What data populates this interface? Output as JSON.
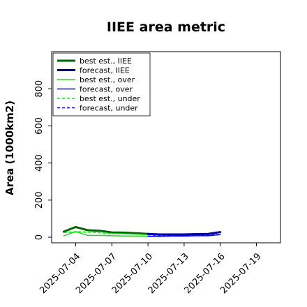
{
  "chart_data": {
    "type": "line",
    "title": "IIEE area metric",
    "xlabel": "",
    "ylabel": "Area (1000km2)",
    "ylim": [
      -30,
      1000
    ],
    "xlim": [
      "2025-07-02",
      "2025-07-21"
    ],
    "grid": false,
    "legend_position": "top-left",
    "x_ticks": [
      {
        "date": "2025-07-04",
        "label": "2025-07-04",
        "color": "#000000"
      },
      {
        "date": "2025-07-07",
        "label": "2025-07-07",
        "color": "#000000"
      },
      {
        "date": "2025-07-10",
        "label": "2025-07-10",
        "color": "#228b22"
      },
      {
        "date": "2025-07-13",
        "label": "2025-07-13",
        "color": "#000000"
      },
      {
        "date": "2025-07-16",
        "label": "2025-07-16",
        "color": "#000000"
      },
      {
        "date": "2025-07-19",
        "label": "2025-07-19",
        "color": "#000000"
      }
    ],
    "y_ticks": [
      0,
      200,
      400,
      600,
      800
    ],
    "series": [
      {
        "name": "best est., IIEE",
        "color": "#006400",
        "style": "solid",
        "width": 3,
        "points": [
          [
            "2025-07-03",
            30
          ],
          [
            "2025-07-04",
            55
          ],
          [
            "2025-07-05",
            38
          ],
          [
            "2025-07-06",
            35
          ],
          [
            "2025-07-07",
            26
          ],
          [
            "2025-07-08",
            25
          ],
          [
            "2025-07-09",
            22
          ],
          [
            "2025-07-10",
            18
          ]
        ]
      },
      {
        "name": "forecast, IIEE",
        "color": "#00008b",
        "style": "solid",
        "width": 3,
        "points": [
          [
            "2025-07-10",
            18
          ],
          [
            "2025-07-11",
            15
          ],
          [
            "2025-07-12",
            15
          ],
          [
            "2025-07-13",
            15
          ],
          [
            "2025-07-14",
            17
          ],
          [
            "2025-07-15",
            18
          ],
          [
            "2025-07-16",
            28
          ]
        ]
      },
      {
        "name": "best est., over",
        "color": "#32cd32",
        "style": "solid",
        "width": 1.5,
        "points": [
          [
            "2025-07-03",
            8
          ],
          [
            "2025-07-04",
            30
          ],
          [
            "2025-07-05",
            10
          ],
          [
            "2025-07-06",
            10
          ],
          [
            "2025-07-07",
            8
          ],
          [
            "2025-07-08",
            7
          ],
          [
            "2025-07-09",
            7
          ],
          [
            "2025-07-10",
            5
          ]
        ]
      },
      {
        "name": "forecast, over",
        "color": "#0000ff",
        "style": "solid",
        "width": 1.5,
        "points": [
          [
            "2025-07-10",
            5
          ],
          [
            "2025-07-11",
            5
          ],
          [
            "2025-07-12",
            6
          ],
          [
            "2025-07-13",
            6
          ],
          [
            "2025-07-14",
            8
          ],
          [
            "2025-07-15",
            8
          ],
          [
            "2025-07-16",
            14
          ]
        ]
      },
      {
        "name": "best est., under",
        "color": "#00ff00",
        "style": "dashed",
        "width": 1.5,
        "points": [
          [
            "2025-07-03",
            25
          ],
          [
            "2025-07-04",
            30
          ],
          [
            "2025-07-05",
            28
          ],
          [
            "2025-07-06",
            24
          ],
          [
            "2025-07-07",
            19
          ],
          [
            "2025-07-08",
            18
          ],
          [
            "2025-07-09",
            16
          ],
          [
            "2025-07-10",
            13
          ]
        ]
      },
      {
        "name": "forecast, under",
        "color": "#0000ff",
        "style": "dashed",
        "width": 1.5,
        "points": [
          [
            "2025-07-10",
            13
          ],
          [
            "2025-07-11",
            10
          ],
          [
            "2025-07-12",
            10
          ],
          [
            "2025-07-13",
            10
          ],
          [
            "2025-07-14",
            10
          ],
          [
            "2025-07-15",
            11
          ],
          [
            "2025-07-16",
            15
          ]
        ]
      }
    ]
  }
}
